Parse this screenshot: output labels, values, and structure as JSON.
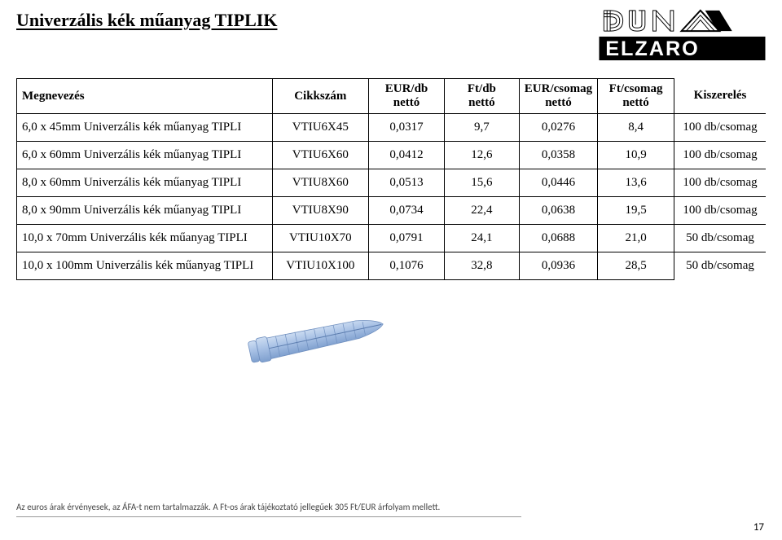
{
  "title": "Univerzális kék műanyag TIPLIK",
  "logo": {
    "line1": "DUNA",
    "line2": "ELZARO"
  },
  "table": {
    "headers": {
      "name": "Megnevezés",
      "code": "Cikkszám",
      "eur_db": {
        "l1": "EUR/db",
        "l2": "nettó"
      },
      "ft_db": {
        "l1": "Ft/db",
        "l2": "nettó"
      },
      "eur_cs": {
        "l1": "EUR/csomag",
        "l2": "nettó"
      },
      "ft_cs": {
        "l1": "Ft/csomag",
        "l2": "nettó"
      },
      "pack": "Kiszerelés"
    },
    "rows": [
      {
        "name": "6,0 x 45mm Univerzális kék műanyag TIPLI",
        "code": "VTIU6X45",
        "eur_db": "0,0317",
        "ft_db": "9,7",
        "eur_cs": "0,0276",
        "ft_cs": "8,4",
        "pack": "100 db/csomag"
      },
      {
        "name": "6,0 x 60mm Univerzális kék műanyag TIPLI",
        "code": "VTIU6X60",
        "eur_db": "0,0412",
        "ft_db": "12,6",
        "eur_cs": "0,0358",
        "ft_cs": "10,9",
        "pack": "100 db/csomag"
      },
      {
        "name": "8,0 x 60mm Univerzális kék műanyag TIPLI",
        "code": "VTIU8X60",
        "eur_db": "0,0513",
        "ft_db": "15,6",
        "eur_cs": "0,0446",
        "ft_cs": "13,6",
        "pack": "100 db/csomag"
      },
      {
        "name": "8,0 x 90mm Univerzális kék műanyag TIPLI",
        "code": "VTIU8X90",
        "eur_db": "0,0734",
        "ft_db": "22,4",
        "eur_cs": "0,0638",
        "ft_cs": "19,5",
        "pack": "100 db/csomag"
      },
      {
        "name": "10,0 x 70mm Univerzális kék műanyag TIPLI",
        "code": "VTIU10X70",
        "eur_db": "0,0791",
        "ft_db": "24,1",
        "eur_cs": "0,0688",
        "ft_cs": "21,0",
        "pack": "50 db/csomag"
      },
      {
        "name": "10,0 x 100mm Univerzális kék műanyag TIPLI",
        "code": "VTIU10X100",
        "eur_db": "0,1076",
        "ft_db": "32,8",
        "eur_cs": "0,0936",
        "ft_cs": "28,5",
        "pack": "50 db/csomag"
      }
    ]
  },
  "footnote": "Az euros árak érvényesek, az ÁFA-t nem tartalmazzák. A Ft-os árak tájékoztató jellegűek 305 Ft/EUR árfolyam mellett.",
  "page_number": "17",
  "colors": {
    "dowel_fill": "#a8c1e5",
    "dowel_stroke": "#6f8fbf",
    "text": "#000000",
    "bg": "#ffffff",
    "border": "#000000",
    "footnote": "#555555"
  }
}
